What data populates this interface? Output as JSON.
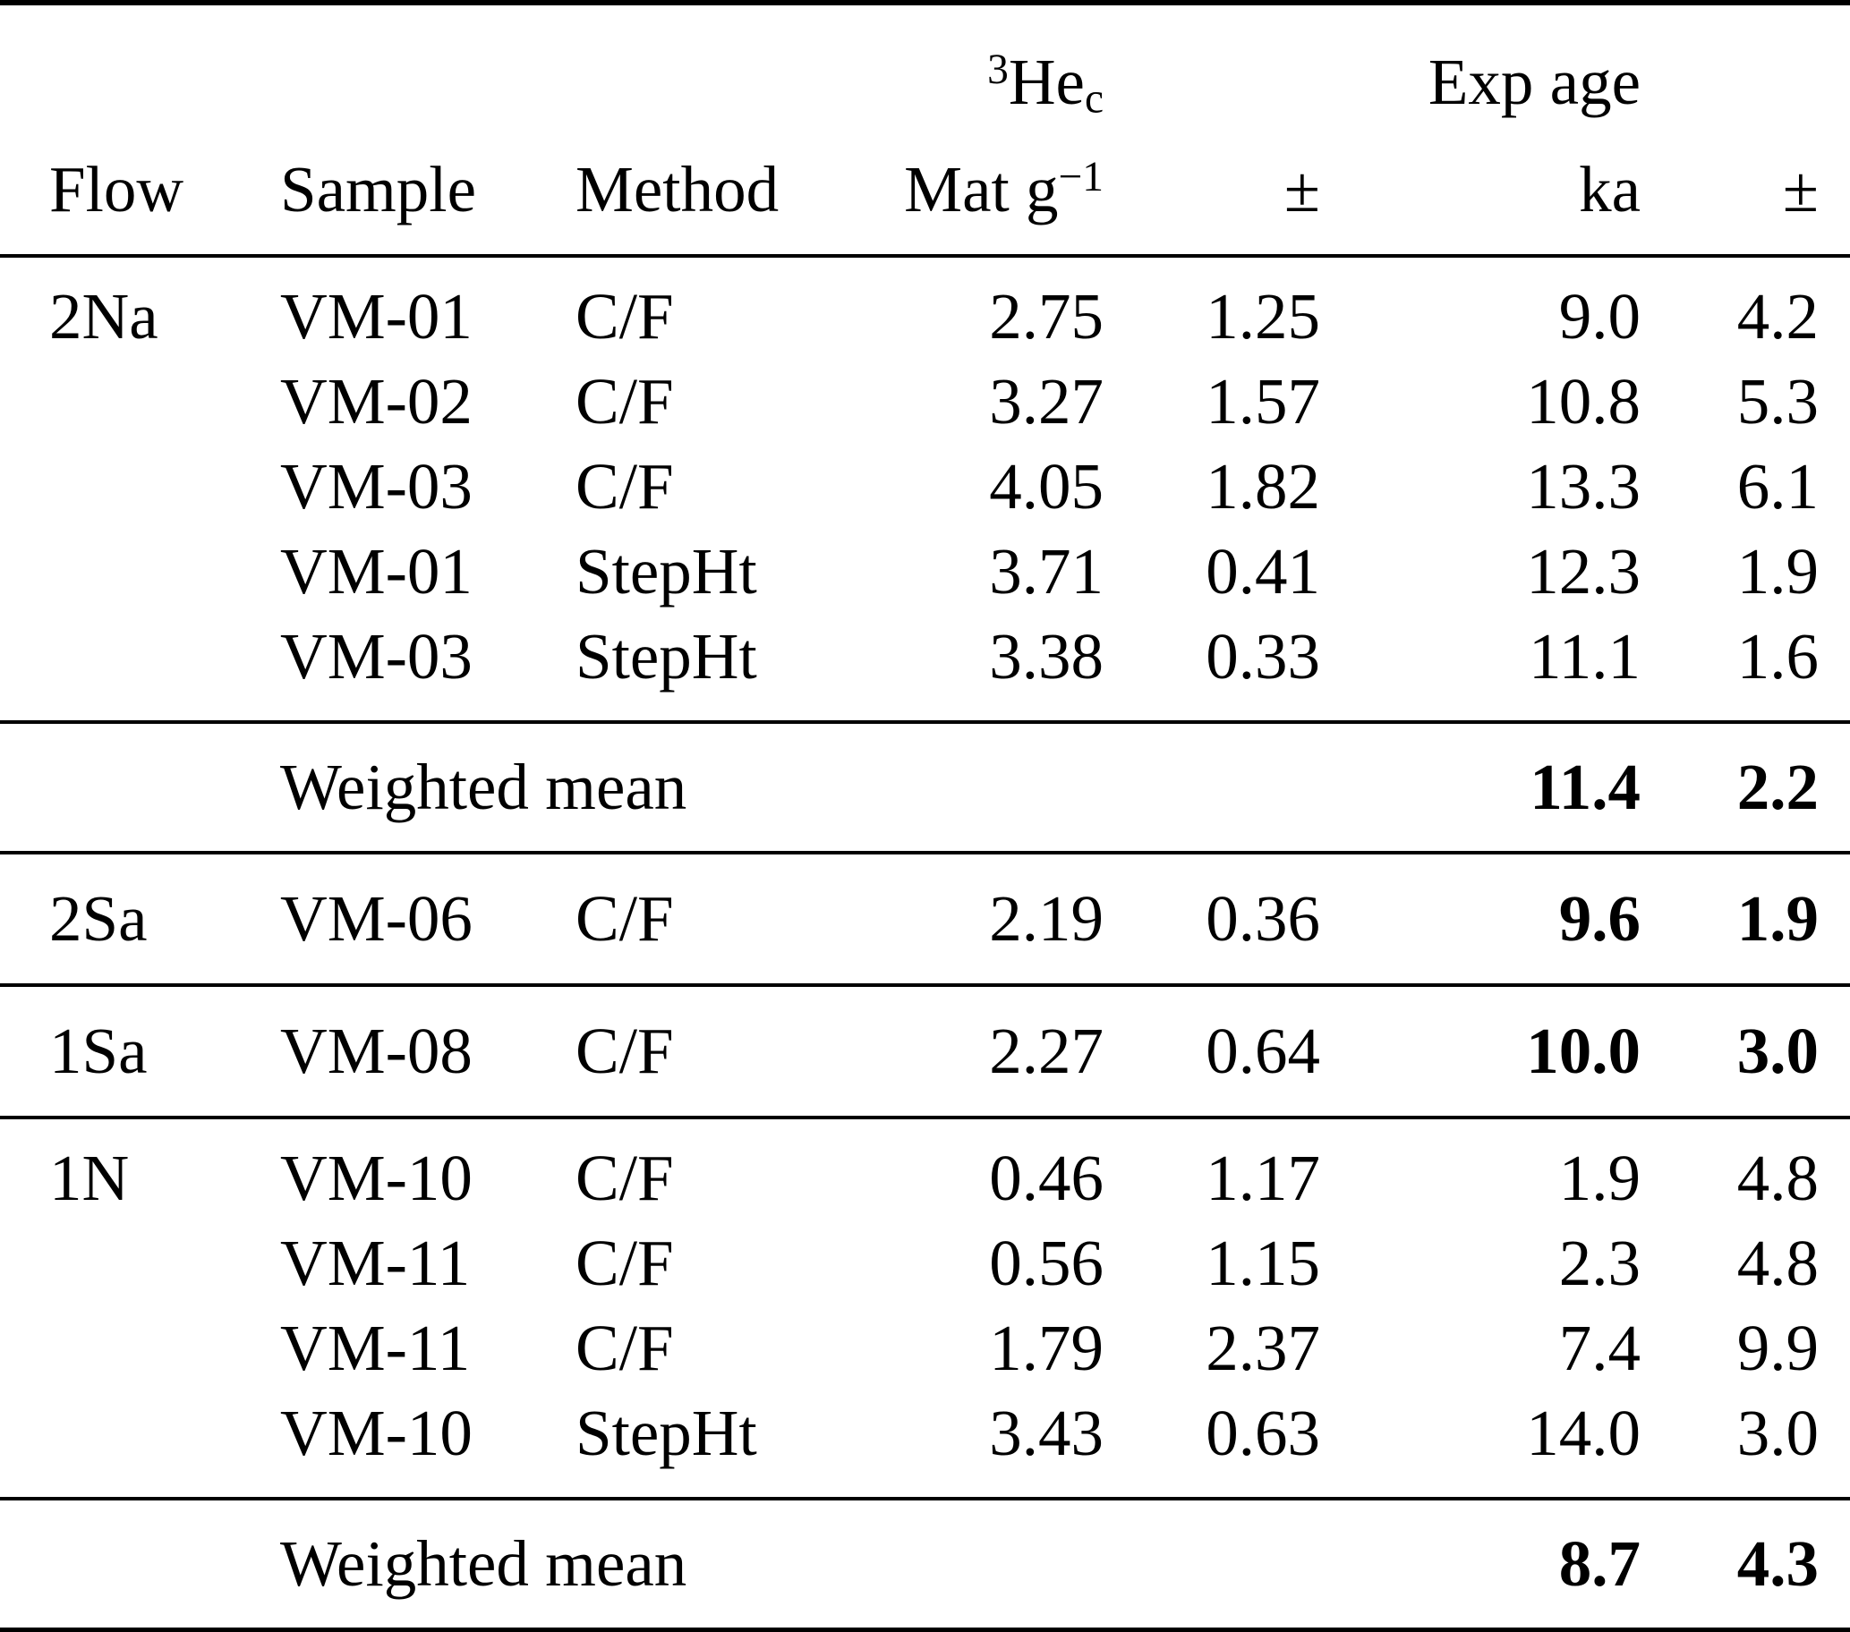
{
  "page": {
    "background": "#ffffff",
    "text_color": "#000000"
  },
  "table": {
    "header": {
      "isotope": {
        "sup": "3",
        "base": "He",
        "sub": "c"
      },
      "exp_age": "Exp age",
      "columns": {
        "flow": "Flow",
        "sample": "Sample",
        "method": "Method",
        "he_unit": {
          "base": "Mat g",
          "sup": "−1"
        },
        "pm1": "±",
        "ka": "ka",
        "pm2": "±"
      }
    },
    "sections": [
      {
        "rows": [
          {
            "flow": "2Na",
            "sample": "VM-01",
            "method": "C/F",
            "he": "2.75",
            "he_err": "1.25",
            "age": "9.0",
            "age_err": "4.2",
            "bold": false
          },
          {
            "flow": "",
            "sample": "VM-02",
            "method": "C/F",
            "he": "3.27",
            "he_err": "1.57",
            "age": "10.8",
            "age_err": "5.3",
            "bold": false
          },
          {
            "flow": "",
            "sample": "VM-03",
            "method": "C/F",
            "he": "4.05",
            "he_err": "1.82",
            "age": "13.3",
            "age_err": "6.1",
            "bold": false
          },
          {
            "flow": "",
            "sample": "VM-01",
            "method": "StepHt",
            "he": "3.71",
            "he_err": "0.41",
            "age": "12.3",
            "age_err": "1.9",
            "bold": false
          },
          {
            "flow": "",
            "sample": "VM-03",
            "method": "StepHt",
            "he": "3.38",
            "he_err": "0.33",
            "age": "11.1",
            "age_err": "1.6",
            "bold": false
          }
        ],
        "summary": {
          "label": "Weighted mean",
          "age": "11.4",
          "age_err": "2.2"
        }
      },
      {
        "rows": [
          {
            "flow": "2Sa",
            "sample": "VM-06",
            "method": "C/F",
            "he": "2.19",
            "he_err": "0.36",
            "age": "9.6",
            "age_err": "1.9",
            "bold": true
          }
        ]
      },
      {
        "rows": [
          {
            "flow": "1Sa",
            "sample": "VM-08",
            "method": "C/F",
            "he": "2.27",
            "he_err": "0.64",
            "age": "10.0",
            "age_err": "3.0",
            "bold": true
          }
        ]
      },
      {
        "rows": [
          {
            "flow": "1N",
            "sample": "VM-10",
            "method": "C/F",
            "he": "0.46",
            "he_err": "1.17",
            "age": "1.9",
            "age_err": "4.8",
            "bold": false
          },
          {
            "flow": "",
            "sample": "VM-11",
            "method": "C/F",
            "he": "0.56",
            "he_err": "1.15",
            "age": "2.3",
            "age_err": "4.8",
            "bold": false
          },
          {
            "flow": "",
            "sample": "VM-11",
            "method": "C/F",
            "he": "1.79",
            "he_err": "2.37",
            "age": "7.4",
            "age_err": "9.9",
            "bold": false
          },
          {
            "flow": "",
            "sample": "VM-10",
            "method": "StepHt",
            "he": "3.43",
            "he_err": "0.63",
            "age": "14.0",
            "age_err": "3.0",
            "bold": false
          }
        ],
        "summary": {
          "label": "Weighted mean",
          "age": "8.7",
          "age_err": "4.3"
        }
      }
    ]
  }
}
